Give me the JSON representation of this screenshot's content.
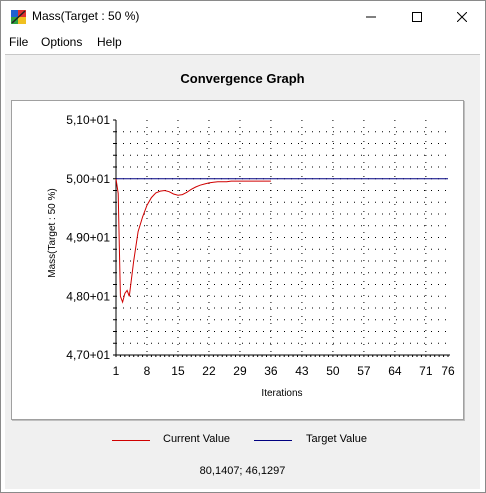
{
  "window": {
    "title": "Mass(Target : 50 %)",
    "icon": "app-icon"
  },
  "menu": {
    "items": [
      "File",
      "Options",
      "Help"
    ]
  },
  "colors": {
    "current": "#d00000",
    "target": "#000080",
    "background": "#f0f0f0"
  },
  "chart_data": {
    "type": "line",
    "title": "Convergence Graph",
    "xlabel": "Iterations",
    "ylabel": "Mass(Target : 50 %)",
    "x_ticks": [
      "1",
      "8",
      "15",
      "22",
      "29",
      "36",
      "43",
      "50",
      "57",
      "64",
      "71",
      "76"
    ],
    "y_ticks": [
      "4,70+01",
      "4,80+01",
      "4,90+01",
      "5,00+01",
      "5,10+01"
    ],
    "xlim": [
      1,
      76
    ],
    "ylim": [
      47,
      51
    ],
    "grid": true,
    "legend_placement": "bottom",
    "series": [
      {
        "name": "Current Value",
        "color": "#d00000",
        "x": [
          1,
          1.5,
          2,
          2.5,
          3,
          3.5,
          4,
          5,
          6,
          7,
          8,
          9,
          10,
          11,
          12,
          13,
          14,
          15,
          16,
          17,
          18,
          19,
          20,
          21,
          22,
          23,
          24,
          25,
          26,
          27,
          28,
          29,
          30,
          31,
          32,
          33,
          34,
          35,
          36
        ],
        "y": [
          50.0,
          49.75,
          48.0,
          47.9,
          48.05,
          48.1,
          48.0,
          48.6,
          49.1,
          49.35,
          49.55,
          49.68,
          49.76,
          49.79,
          49.8,
          49.78,
          49.74,
          49.72,
          49.73,
          49.77,
          49.82,
          49.86,
          49.89,
          49.91,
          49.93,
          49.94,
          49.95,
          49.95,
          49.95,
          49.96,
          49.96,
          49.96,
          49.96,
          49.96,
          49.96,
          49.96,
          49.96,
          49.96,
          49.96
        ]
      },
      {
        "name": "Target Value",
        "color": "#000080",
        "x": [
          1,
          76
        ],
        "y": [
          50,
          50
        ]
      }
    ]
  },
  "status": {
    "coordinates": "80,1407; 46,1297"
  }
}
